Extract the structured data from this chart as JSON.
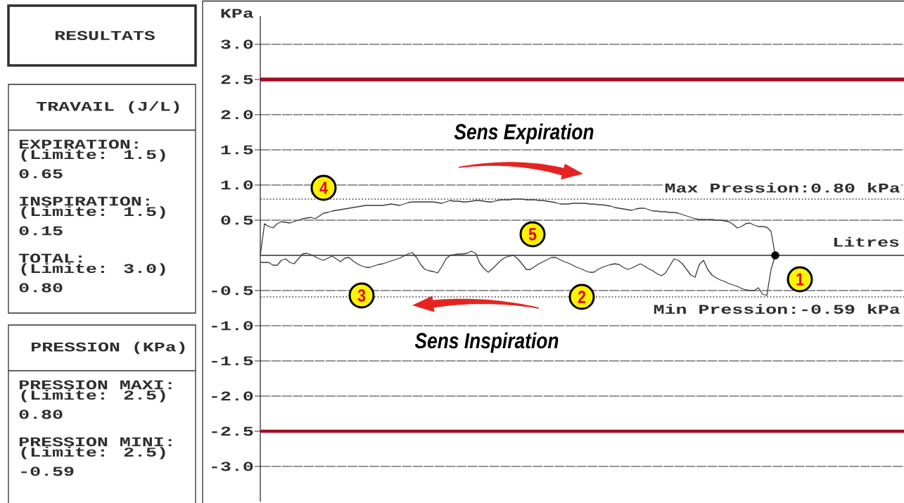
{
  "chart_data": [
    {
      "type": "other",
      "title": "RESULTATS"
    },
    {
      "type": "other",
      "title": "TRAVAIL (J/L)",
      "annotations": [
        "EXPIRATION:",
        "(Limite: 1.5)",
        "0.65",
        "INSPIRATION:",
        "(Limite: 1.5)",
        "0.15",
        "TOTAL:",
        "(Limite: 3.0)",
        "0.80"
      ]
    },
    {
      "type": "other",
      "title": "PRESSION (KPa)",
      "annotations": [
        "PRESSION MAXI:",
        "(Limite: 2.5)",
        "0.80",
        "PRESSION MINI:",
        "(Limite: 2.5)",
        "-0.59"
      ]
    },
    {
      "type": "line",
      "xlabel": "Litres",
      "ylabel": "KPa",
      "categories": [
        null,
        null,
        null,
        null,
        null,
        null,
        null,
        null,
        null,
        null,
        null,
        null,
        null,
        null,
        null,
        null,
        null,
        null,
        null,
        null,
        null,
        null,
        null,
        null,
        null,
        null,
        null,
        null,
        null,
        null,
        null,
        null,
        null,
        null,
        null,
        null,
        null,
        null,
        null,
        null,
        null,
        null,
        null,
        null,
        null,
        null,
        null,
        null,
        null,
        null,
        null,
        null,
        null,
        null,
        null,
        null,
        null,
        null,
        null,
        null,
        null,
        null,
        null,
        null,
        null,
        null,
        null,
        null,
        null,
        null,
        null,
        null,
        null,
        null,
        null,
        null,
        null,
        null,
        null,
        null,
        null,
        null,
        null,
        null,
        null,
        null,
        null,
        null,
        null,
        null,
        null,
        null,
        null,
        null,
        null,
        null,
        null,
        null,
        null,
        null,
        null,
        null,
        null,
        null,
        null,
        null,
        null,
        null,
        null,
        null,
        null,
        null,
        null,
        null,
        null,
        null,
        null,
        null,
        null,
        null,
        null,
        null,
        null
      ],
      "series": [
        {
          "color": "#3a3a3a",
          "values": [
            0.0,
            0.45,
            0.41,
            0.39,
            0.45,
            0.48,
            0.47,
            0.46,
            0.48,
            0.5,
            0.52,
            0.53,
            0.54,
            0.52,
            0.56,
            0.6,
            0.61,
            0.63,
            0.64,
            0.65,
            0.66,
            0.67,
            0.68,
            0.69,
            0.7,
            0.71,
            0.71,
            0.71,
            0.71,
            0.71,
            0.72,
            0.73,
            0.72,
            0.71,
            0.73,
            0.75,
            0.76,
            0.76,
            0.76,
            0.76,
            0.76,
            0.76,
            0.75,
            0.74,
            0.76,
            0.78,
            0.77,
            0.77,
            0.76,
            0.76,
            0.77,
            0.78,
            0.78,
            0.77,
            0.76,
            0.76,
            0.78,
            0.79,
            0.79,
            0.79,
            0.8,
            0.8,
            0.8,
            0.79,
            0.79,
            0.79,
            0.78,
            0.78,
            0.77,
            0.76,
            0.75,
            0.73,
            0.73,
            0.73,
            0.74,
            0.74,
            0.74,
            0.74,
            0.73,
            0.73,
            0.72,
            0.72,
            0.71,
            0.7,
            0.68,
            0.67,
            0.66,
            0.65,
            0.64,
            0.66,
            0.67,
            0.67,
            0.65,
            0.63,
            0.63,
            0.62,
            0.62,
            0.61,
            0.61,
            0.6,
            0.58,
            0.56,
            0.54,
            0.52,
            0.51,
            0.51,
            0.51,
            0.51,
            0.5,
            0.5,
            0.49,
            0.48,
            0.44,
            0.39,
            0.41,
            0.45,
            0.46,
            0.43,
            0.41,
            0.41,
            0.4,
            0.34,
            0
          ]
        },
        {
          "color": "#3a3a3a",
          "values": [
            -0.1,
            -0.1,
            -0.1,
            -0.14,
            -0.14,
            -0.07,
            -0.05,
            -0.1,
            -0.12,
            -0.05,
            0.02,
            0.03,
            0.01,
            -0.02,
            -0.05,
            -0.07,
            -0.04,
            -0.01,
            -0.05,
            -0.09,
            -0.04,
            -0.03,
            -0.08,
            -0.12,
            -0.15,
            -0.17,
            -0.17,
            -0.15,
            -0.13,
            -0.12,
            -0.1,
            -0.08,
            -0.06,
            -0.04,
            -0.01,
            0.02,
            0.04,
            -0.03,
            -0.13,
            -0.2,
            -0.22,
            -0.23,
            -0.25,
            -0.16,
            -0.05,
            0.0,
            0.01,
            0.02,
            0.02,
            0.03,
            0.06,
            0.03,
            -0.11,
            -0.19,
            -0.24,
            -0.19,
            -0.13,
            -0.07,
            -0.03,
            -0.01,
            0.0,
            -0.05,
            -0.12,
            -0.2,
            -0.2,
            -0.16,
            -0.12,
            -0.09,
            -0.06,
            -0.03,
            -0.03,
            -0.06,
            -0.09,
            -0.11,
            -0.14,
            -0.17,
            -0.19,
            -0.22,
            -0.24,
            -0.24,
            -0.2,
            -0.17,
            -0.15,
            -0.13,
            -0.12,
            -0.13,
            -0.17,
            -0.2,
            -0.18,
            -0.15,
            -0.12,
            -0.15,
            -0.19,
            -0.22,
            -0.26,
            -0.29,
            -0.25,
            -0.15,
            -0.05,
            -0.07,
            -0.12,
            -0.2,
            -0.28,
            -0.31,
            -0.13,
            -0.07,
            -0.2,
            -0.28,
            -0.32,
            -0.35,
            -0.37,
            -0.4,
            -0.42,
            -0.44,
            -0.47,
            -0.49,
            -0.5,
            -0.5,
            -0.46,
            -0.55,
            -0.57,
            -0.2,
            0
          ]
        },
        {
          "type": "scatter",
          "color": "#000000",
          "marker": "circle",
          "values": [
            null,
            null,
            null,
            null,
            null,
            null,
            null,
            null,
            null,
            null,
            null,
            null,
            null,
            null,
            null,
            null,
            null,
            null,
            null,
            null,
            null,
            null,
            null,
            null,
            null,
            null,
            null,
            null,
            null,
            null,
            null,
            null,
            null,
            null,
            null,
            null,
            null,
            null,
            null,
            null,
            null,
            null,
            null,
            null,
            null,
            null,
            null,
            null,
            null,
            null,
            null,
            null,
            null,
            null,
            null,
            null,
            null,
            null,
            null,
            null,
            null,
            null,
            null,
            null,
            null,
            null,
            null,
            null,
            null,
            null,
            null,
            null,
            null,
            null,
            null,
            null,
            null,
            null,
            null,
            null,
            null,
            null,
            null,
            null,
            null,
            null,
            null,
            null,
            null,
            null,
            null,
            null,
            null,
            null,
            null,
            null,
            null,
            null,
            null,
            null,
            null,
            null,
            null,
            null,
            null,
            null,
            null,
            null,
            null,
            null,
            null,
            null,
            null,
            null,
            null,
            null,
            null,
            null,
            null,
            null,
            null,
            null,
            0
          ]
        }
      ],
      "ylim": [
        -3.5,
        3.4
      ],
      "yticks": [
        {
          "value": 3,
          "label": "3.0"
        },
        2.5,
        {
          "value": 2,
          "label": "2.0"
        },
        1.5,
        {
          "value": 1,
          "label": "1.0"
        },
        0.5,
        -0.5,
        {
          "value": -1,
          "label": "-1.0"
        },
        -1.5,
        {
          "value": -2,
          "label": "-2.0"
        },
        -2.5,
        {
          "value": -3,
          "label": "-3.0"
        }
      ],
      "grid": "y",
      "tick_labels": "y",
      "ref_lines": [
        {
          "axis": "y",
          "value": 2.5,
          "color": "#a50d24",
          "line_style": "solid"
        },
        {
          "axis": "y",
          "value": -2.5,
          "color": "#a50d24",
          "line_style": "solid"
        },
        {
          "axis": "y",
          "value": 0.8,
          "label": "Max Pression:0.80 kPa",
          "color": "#555555",
          "line_style": "dotted"
        },
        {
          "axis": "y",
          "value": -0.59,
          "label": "Min Pression:-0.59 kPa",
          "color": "#555555",
          "line_style": "dotted"
        }
      ],
      "annotations": [
        "Sens Expiration",
        "Sens Inspiration",
        "1",
        "2",
        "3",
        "4",
        "5"
      ]
    }
  ]
}
